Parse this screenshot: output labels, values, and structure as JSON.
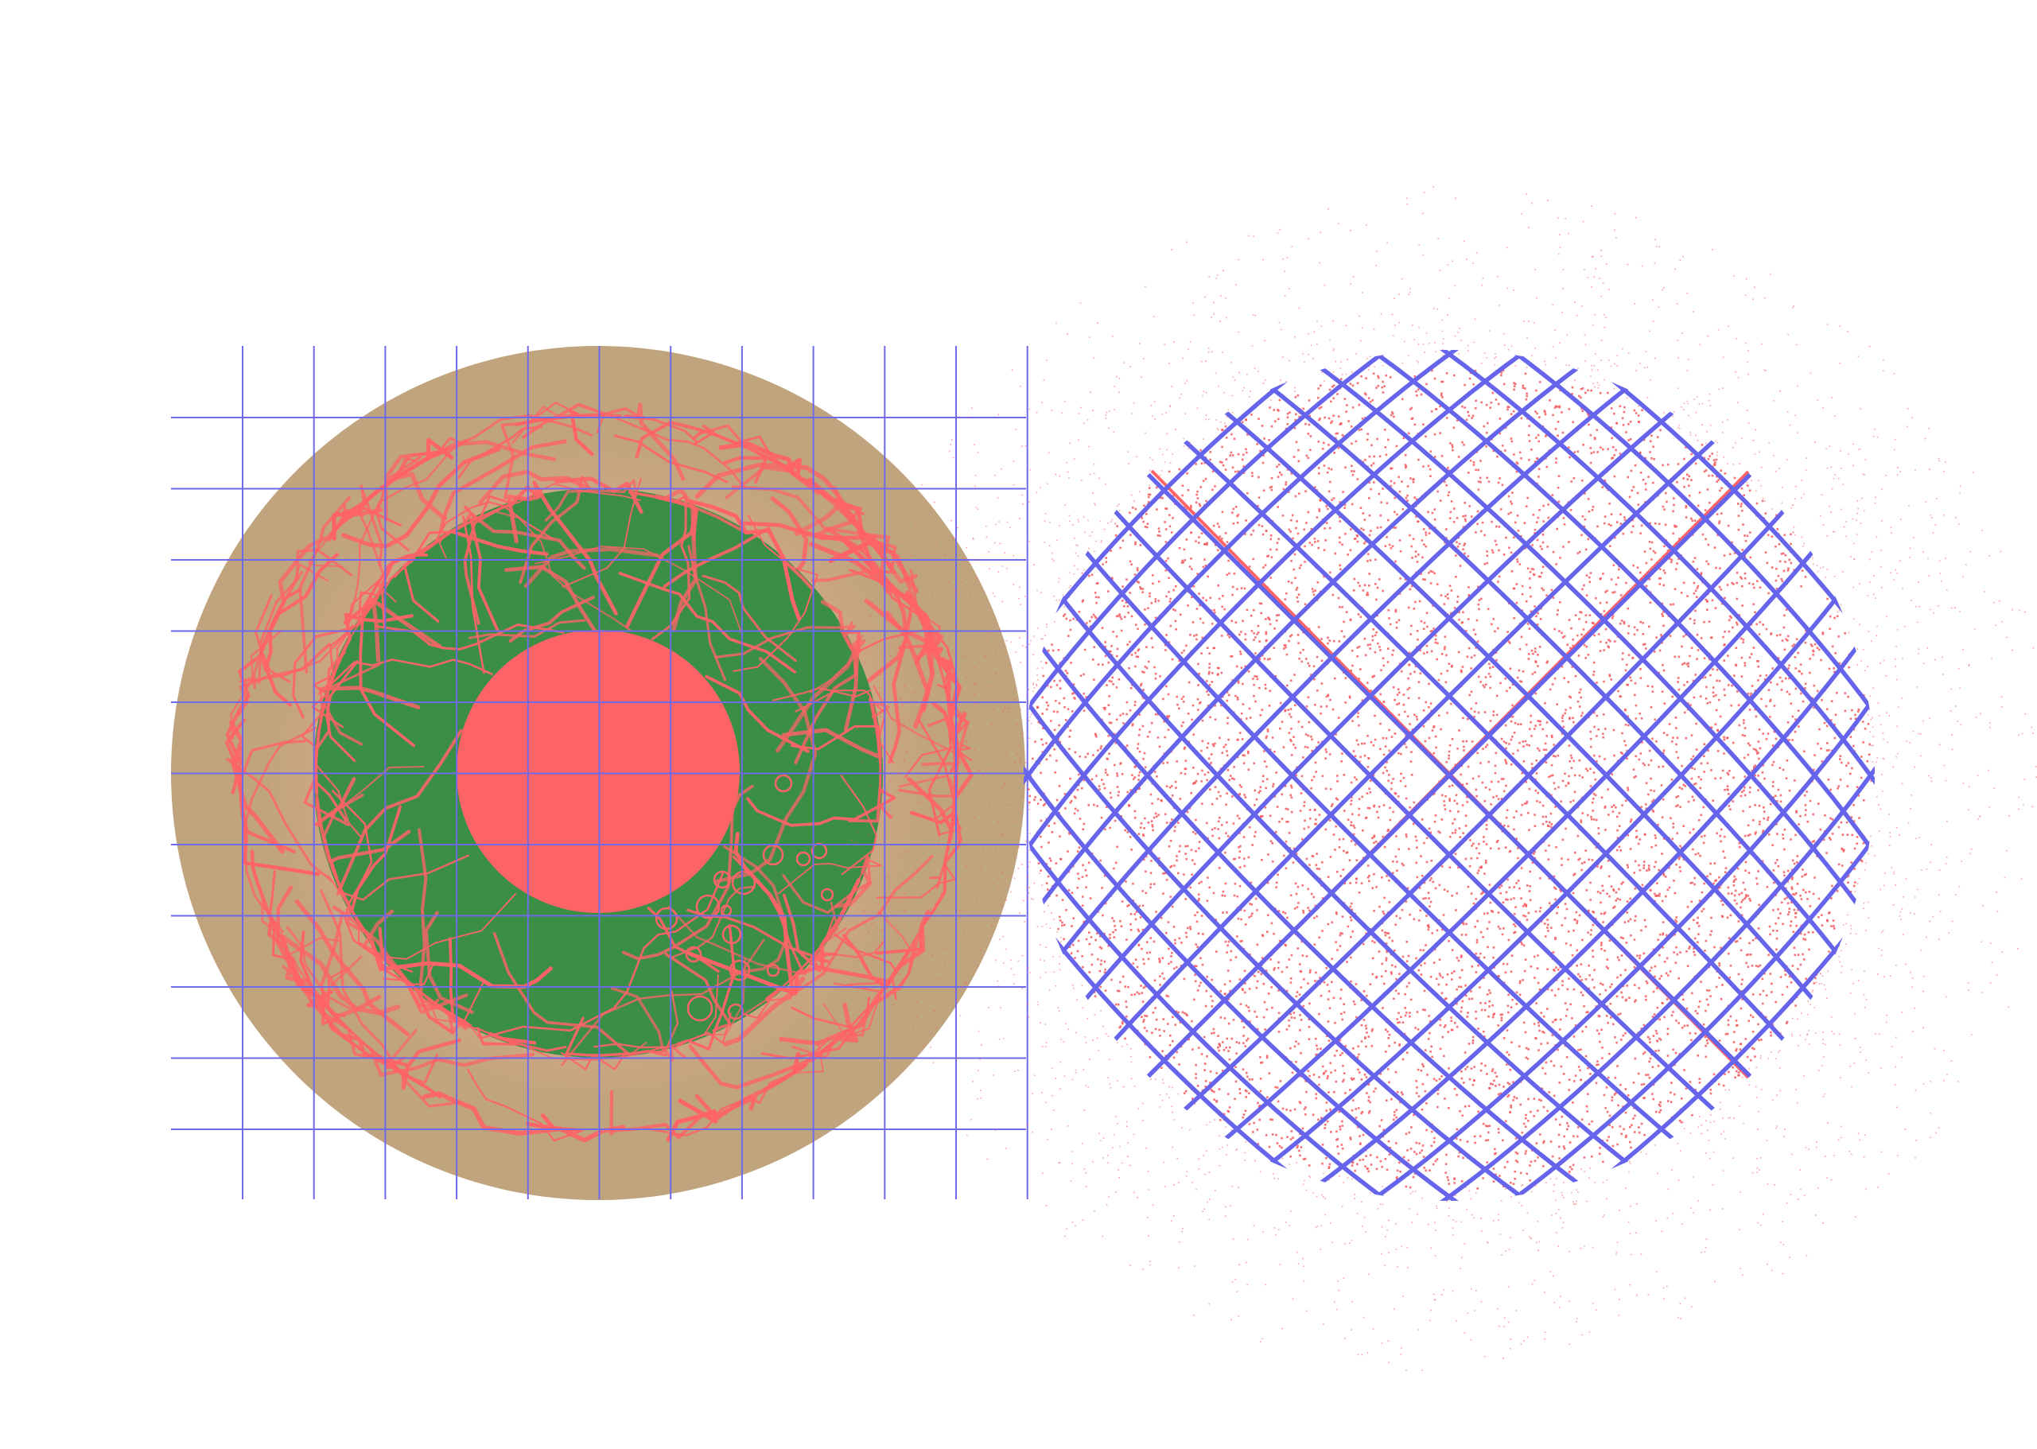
{
  "colors": {
    "background": "#ffffff",
    "outer_ring": "#bfa47d",
    "outer_ring_inner_tint": "#d6a888",
    "green_disc": "#3b8f45",
    "coral": "#fe6367",
    "grid_line": "#6f6ae9",
    "mesh": "#6564ea",
    "speckle": "#f35a5e"
  },
  "left_figure": {
    "shape": "concentric-discs",
    "layers": [
      "outer-tan-disc",
      "coral-vein-band",
      "green-disc",
      "coral-center-disc"
    ],
    "grid": {
      "overlay": true,
      "columns": 12,
      "rows": 11
    },
    "bubble_count": 16
  },
  "right_figure": {
    "shape": "warped-mesh-sphere",
    "mesh_lines_per_direction": 26,
    "diagonal_lines": 2,
    "speckle_density": "high"
  }
}
